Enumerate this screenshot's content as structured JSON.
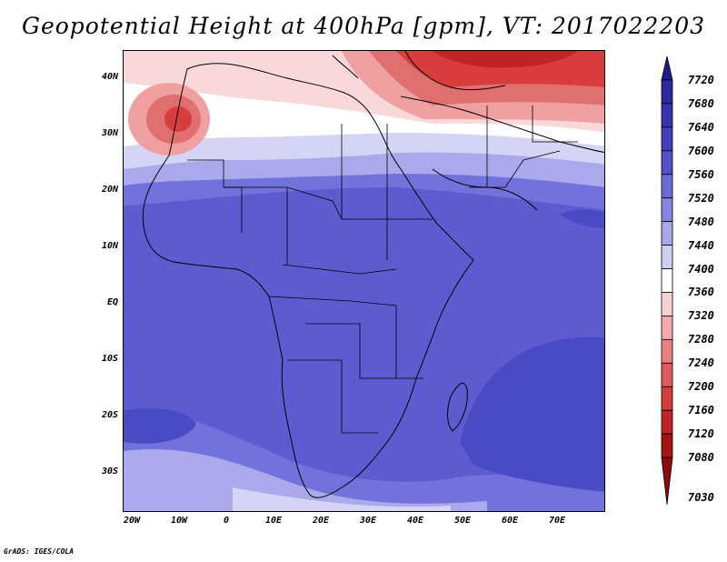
{
  "title": "Geopotential Height at 400hPa [gpm], VT: 2017022203",
  "footer": "GrADS: IGES/COLA",
  "y_axis_labels": [
    "40N",
    "30N",
    "20N",
    "10N",
    "EQ",
    "10S",
    "20S",
    "30S"
  ],
  "x_axis_labels": [
    "20W",
    "10W",
    "0",
    "10E",
    "20E",
    "30E",
    "40E",
    "50E",
    "60E",
    "70E"
  ],
  "colorbar": {
    "labels": [
      "7720",
      "7680",
      "7640",
      "7600",
      "7560",
      "7520",
      "7480",
      "7440",
      "7400",
      "7360",
      "7320",
      "7280",
      "7240",
      "7200",
      "7160",
      "7120",
      "7080",
      "7030"
    ],
    "colors": [
      "#1c1c8a",
      "#2a2a9e",
      "#3535b0",
      "#4040bf",
      "#5252c8",
      "#6b6bd6",
      "#8686e0",
      "#a7a7ea",
      "#cfcff3",
      "#ffffff",
      "#f8d2d2",
      "#f1a9a9",
      "#e98080",
      "#de5c5c",
      "#d23d3d",
      "#c02424",
      "#a81414",
      "#8c0a0a"
    ]
  },
  "map_colors": {
    "deep_red": "#c02424",
    "red": "#d83c3c",
    "light_red": "#f0a0a0",
    "pale_pink": "#f8d8d8",
    "white": "#ffffff",
    "pale_blue": "#d4d4f4",
    "light_blue": "#a9a9ec",
    "mid_blue": "#7272dc",
    "blue": "#5c5cd0",
    "dark_blue": "#4a4ac4"
  }
}
